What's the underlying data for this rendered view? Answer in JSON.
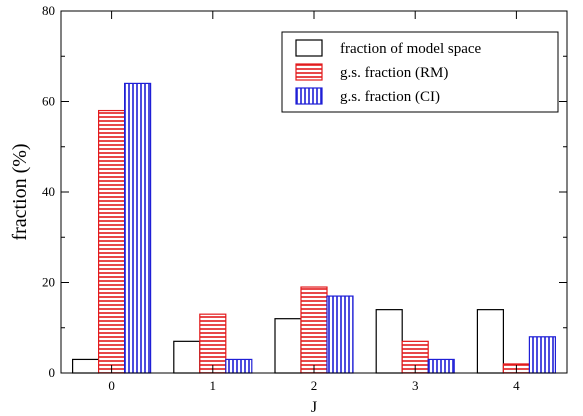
{
  "chart_data": {
    "type": "bar",
    "title": "",
    "xlabel": "J",
    "ylabel": "fraction (%)",
    "categories": [
      "0",
      "1",
      "2",
      "3",
      "4"
    ],
    "ylim": [
      0,
      80
    ],
    "yticks": [
      0,
      20,
      40,
      60,
      80
    ],
    "legend_position": "top-right",
    "series": [
      {
        "name": "fraction of model space",
        "values": [
          3,
          7,
          12,
          14,
          14
        ],
        "color": "#000000",
        "pattern": "none"
      },
      {
        "name": "g.s. fraction (RM)",
        "values": [
          58,
          13,
          19,
          7,
          2
        ],
        "color": "#e31a1c",
        "pattern": "horizontal-stripes"
      },
      {
        "name": "g.s. fraction (CI)",
        "values": [
          64,
          3,
          17,
          3,
          8
        ],
        "color": "#1f1fd6",
        "pattern": "vertical-stripes"
      }
    ]
  }
}
